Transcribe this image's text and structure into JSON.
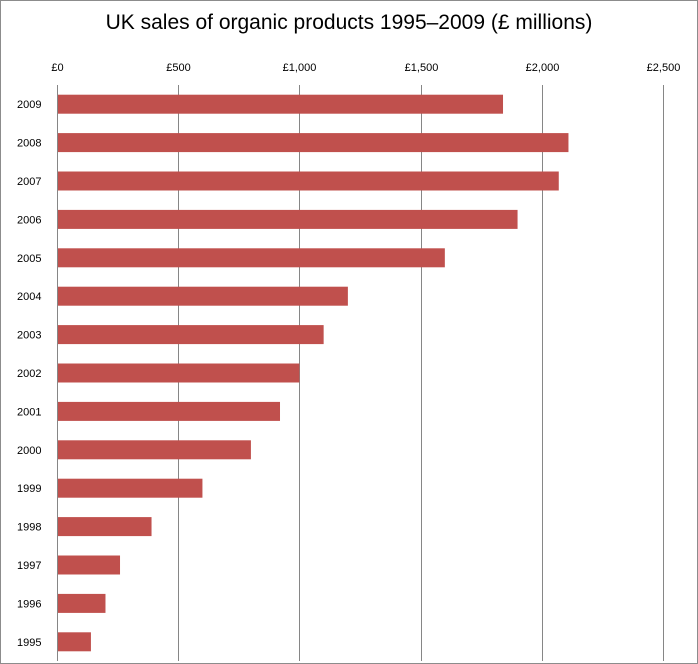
{
  "chart_data": {
    "type": "bar",
    "orientation": "horizontal",
    "title": "UK sales of organic products 1995–2009 (£ millions)",
    "xlabel": "",
    "ylabel": "",
    "categories": [
      "2009",
      "2008",
      "2007",
      "2006",
      "2005",
      "2004",
      "2003",
      "2002",
      "2001",
      "2000",
      "1999",
      "1998",
      "1997",
      "1996",
      "1995"
    ],
    "values": [
      1840,
      2110,
      2070,
      1900,
      1600,
      1200,
      1100,
      1000,
      920,
      800,
      600,
      390,
      260,
      200,
      140
    ],
    "xlim": [
      0,
      2500
    ],
    "xticks": [
      0,
      500,
      1000,
      1500,
      2000,
      2500
    ],
    "xtick_labels": [
      "£0",
      "£500",
      "£1,000",
      "£1,500",
      "£2,000",
      "£2,500"
    ],
    "x_axis_position": "top",
    "grid": true,
    "legend": "none",
    "bar_color": "#C0504D"
  }
}
